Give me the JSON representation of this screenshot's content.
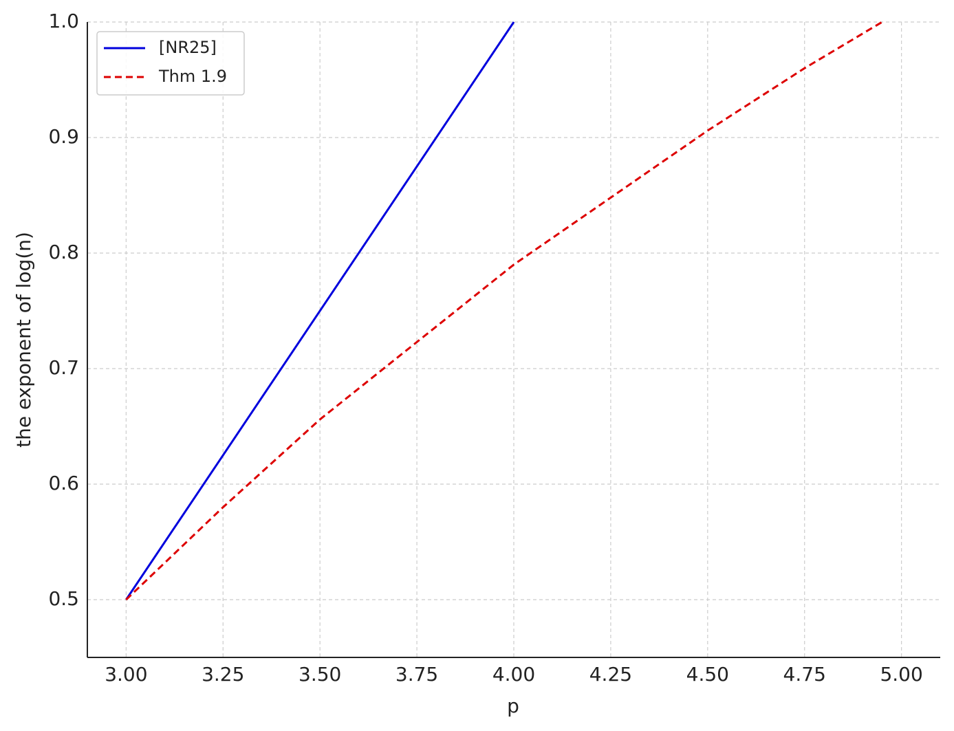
{
  "chart_data": {
    "type": "line",
    "xlabel": "p",
    "ylabel": "the exponent of log(n)",
    "xlim": [
      2.9,
      5.1
    ],
    "ylim": [
      0.45,
      1.0
    ],
    "xticks": [
      {
        "value": 3,
        "label": "3.00"
      },
      {
        "value": 3.25,
        "label": "3.25"
      },
      {
        "value": 3.5,
        "label": "3.50"
      },
      {
        "value": 3.75,
        "label": "3.75"
      },
      {
        "value": 4,
        "label": "4.00"
      },
      {
        "value": 4.25,
        "label": "4.25"
      },
      {
        "value": 4.5,
        "label": "4.50"
      },
      {
        "value": 4.75,
        "label": "4.75"
      },
      {
        "value": 5,
        "label": "5.00"
      }
    ],
    "yticks": [
      0.5,
      0.6,
      0.7,
      0.8,
      0.9,
      {
        "value": 1,
        "label": "1.0"
      }
    ],
    "grid": true,
    "legend": "upper-left",
    "series": [
      {
        "name": "[NR25]",
        "color": "#0000dd",
        "dash": false,
        "x": [
          3,
          4
        ],
        "values": [
          0.5,
          1.0
        ]
      },
      {
        "name": "Thm 1.9",
        "color": "#dd0000",
        "dash": true,
        "x": [
          3,
          3.25,
          3.5,
          3.75,
          4,
          4.25,
          4.5,
          4.75,
          4.95
        ],
        "values": [
          0.5,
          0.58,
          0.656,
          0.723,
          0.79,
          0.848,
          0.906,
          0.96,
          1.0
        ]
      }
    ]
  }
}
